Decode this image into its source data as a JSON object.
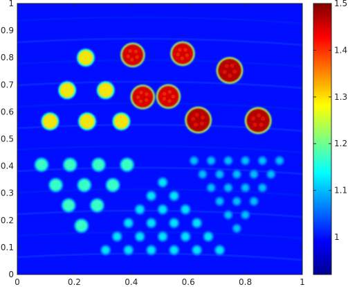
{
  "chart_data": {
    "type": "heatmap",
    "title": "",
    "xlabel": "",
    "ylabel": "",
    "xlim": [
      0,
      1
    ],
    "ylim": [
      0,
      1
    ],
    "xticks": [
      "0",
      "0.2",
      "0.4",
      "0.6",
      "0.8",
      "1"
    ],
    "yticks": [
      "0",
      "0.1",
      "0.2",
      "0.3",
      "0.4",
      "0.5",
      "0.6",
      "0.7",
      "0.8",
      "0.9",
      "1"
    ],
    "colorbar": {
      "colormap": "jet",
      "clim": [
        0.92,
        1.5
      ],
      "ticks": [
        "1",
        "1.1",
        "1.2",
        "1.3",
        "1.4",
        "1.5"
      ]
    },
    "background_value": 1.0,
    "inclusion_groups": [
      {
        "name": "large-disks",
        "value": 1.45,
        "radius": 0.038,
        "centers": [
          [
            0.405,
            0.81
          ],
          [
            0.58,
            0.815
          ],
          [
            0.53,
            0.657
          ],
          [
            0.44,
            0.655
          ]
        ]
      },
      {
        "name": "large-disks-red",
        "value": 1.47,
        "radius": 0.042,
        "centers": [
          [
            0.745,
            0.753
          ],
          [
            0.635,
            0.57
          ],
          [
            0.845,
            0.568
          ]
        ]
      },
      {
        "name": "medium-disks",
        "value": 1.3,
        "radius": 0.026,
        "centers": [
          [
            0.24,
            0.8
          ],
          [
            0.175,
            0.68
          ],
          [
            0.31,
            0.68
          ],
          [
            0.115,
            0.565
          ],
          [
            0.245,
            0.565
          ],
          [
            0.365,
            0.565
          ]
        ]
      },
      {
        "name": "small-disks",
        "value": 1.17,
        "radius": 0.02,
        "centers": [
          [
            0.085,
            0.405
          ],
          [
            0.185,
            0.405
          ],
          [
            0.285,
            0.405
          ],
          [
            0.385,
            0.405
          ],
          [
            0.135,
            0.33
          ],
          [
            0.235,
            0.33
          ],
          [
            0.335,
            0.33
          ],
          [
            0.18,
            0.255
          ],
          [
            0.28,
            0.255
          ],
          [
            0.225,
            0.18
          ]
        ]
      },
      {
        "name": "lower-triangle",
        "value": 1.12,
        "radius": 0.013,
        "centers": [
          [
            0.51,
            0.34
          ],
          [
            0.47,
            0.29
          ],
          [
            0.55,
            0.29
          ],
          [
            0.43,
            0.24
          ],
          [
            0.51,
            0.24
          ],
          [
            0.59,
            0.24
          ],
          [
            0.39,
            0.19
          ],
          [
            0.47,
            0.19
          ],
          [
            0.55,
            0.19
          ],
          [
            0.63,
            0.19
          ],
          [
            0.35,
            0.14
          ],
          [
            0.43,
            0.14
          ],
          [
            0.51,
            0.14
          ],
          [
            0.59,
            0.14
          ],
          [
            0.67,
            0.14
          ],
          [
            0.31,
            0.09
          ],
          [
            0.39,
            0.09
          ],
          [
            0.47,
            0.09
          ],
          [
            0.55,
            0.09
          ],
          [
            0.63,
            0.09
          ],
          [
            0.71,
            0.09
          ]
        ]
      },
      {
        "name": "inverted-triangle",
        "value": 1.1,
        "radius": 0.011,
        "centers": [
          [
            0.62,
            0.42
          ],
          [
            0.68,
            0.42
          ],
          [
            0.74,
            0.42
          ],
          [
            0.8,
            0.42
          ],
          [
            0.86,
            0.42
          ],
          [
            0.92,
            0.42
          ],
          [
            0.65,
            0.37
          ],
          [
            0.71,
            0.37
          ],
          [
            0.77,
            0.37
          ],
          [
            0.83,
            0.37
          ],
          [
            0.89,
            0.37
          ],
          [
            0.68,
            0.32
          ],
          [
            0.74,
            0.32
          ],
          [
            0.8,
            0.32
          ],
          [
            0.86,
            0.32
          ],
          [
            0.71,
            0.27
          ],
          [
            0.77,
            0.27
          ],
          [
            0.83,
            0.27
          ],
          [
            0.74,
            0.22
          ],
          [
            0.8,
            0.22
          ],
          [
            0.77,
            0.17
          ]
        ]
      }
    ]
  }
}
